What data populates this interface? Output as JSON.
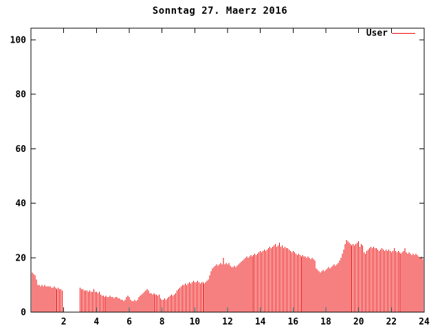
{
  "header": {
    "title": "Sonntag 27. Maerz 2016"
  },
  "legend": {
    "label": "User"
  },
  "colors": {
    "bar": "#ee0000",
    "legend_line": "#ee0000",
    "axis": "#000000",
    "background": "#ffffff",
    "text": "#000000"
  },
  "chart_data": {
    "type": "bar",
    "subtype": "impulses",
    "title": "Sonntag 27. Maerz 2016",
    "series_name": "User",
    "xlabel": "",
    "ylabel": "",
    "x_unit": "hour of day",
    "x_interval_minutes": 5,
    "xlim": [
      0,
      24
    ],
    "ylim": [
      0,
      104
    ],
    "xticks": [
      2,
      4,
      6,
      8,
      10,
      12,
      14,
      16,
      18,
      20,
      22,
      24
    ],
    "yticks": [
      0,
      20,
      40,
      60,
      80,
      100
    ],
    "grid": false,
    "legend_position": "top-right",
    "values": [
      14.5,
      14,
      13.5,
      12,
      10,
      10,
      9.5,
      10,
      9.5,
      10,
      9.5,
      9.5,
      9.5,
      9.5,
      9,
      9,
      9.5,
      9,
      8.5,
      9,
      8.5,
      8.5,
      8,
      0,
      0,
      0,
      0,
      0,
      0,
      0,
      0,
      0,
      0,
      0,
      0,
      9,
      8.5,
      8.5,
      8,
      8,
      8,
      7.5,
      8,
      7.5,
      7.5,
      8.5,
      7.5,
      7.5,
      7,
      7.5,
      6.5,
      6,
      6,
      5.5,
      6,
      5.5,
      5.5,
      6,
      5.5,
      5.5,
      5,
      5.5,
      5.5,
      5,
      5,
      4.5,
      4.5,
      4,
      4.5,
      5.5,
      6,
      5.5,
      4.5,
      4,
      4,
      4.5,
      4,
      4.5,
      5.5,
      6,
      6.5,
      7,
      7.5,
      8,
      8.5,
      8,
      7,
      7,
      6.5,
      7,
      6.5,
      6.5,
      6,
      6.5,
      5,
      4.5,
      4.5,
      5,
      4.5,
      5,
      5.5,
      6,
      6.5,
      6,
      6.5,
      7,
      8,
      8.5,
      9,
      9.5,
      10,
      10,
      10.5,
      10,
      10.5,
      11,
      10.5,
      11,
      11.5,
      11,
      11,
      11.5,
      11,
      10.5,
      11,
      11,
      10.5,
      11,
      11.5,
      12,
      13.5,
      15,
      16,
      16.5,
      17,
      17.5,
      17,
      17.5,
      18,
      17.5,
      20,
      17.5,
      18,
      17.5,
      18,
      17,
      16.5,
      16.5,
      17,
      16.5,
      17,
      17.5,
      18,
      18.5,
      19,
      19.5,
      20,
      20.5,
      20,
      20.5,
      21,
      20.5,
      21,
      21.5,
      21,
      21.5,
      22,
      22.5,
      22,
      22.5,
      23,
      22.5,
      23,
      23.5,
      24,
      23.5,
      24,
      24.5,
      25,
      24,
      24.5,
      25.5,
      24,
      24.5,
      23.5,
      24,
      23.5,
      23.5,
      23,
      22.5,
      22,
      22.5,
      22,
      21.5,
      21,
      21.5,
      21,
      20.5,
      21,
      20.5,
      20.5,
      20,
      20.5,
      20,
      19.5,
      20,
      19.5,
      19,
      16,
      15.5,
      15,
      14.5,
      15,
      15.5,
      15,
      15.5,
      16,
      16.5,
      16,
      16.5,
      17,
      17.5,
      17,
      17.5,
      18,
      19,
      20,
      21.5,
      23,
      25,
      26.5,
      26,
      25.5,
      25,
      24.5,
      25,
      24.5,
      25,
      25.5,
      26,
      24,
      25,
      24.5,
      22,
      21.5,
      22.5,
      23,
      23.5,
      24,
      23.5,
      24,
      23.5,
      23.5,
      23,
      22.5,
      23,
      23.5,
      23,
      22.5,
      23,
      22.5,
      23,
      22.5,
      22,
      22.5,
      23.5,
      22.5,
      22,
      22.5,
      22,
      21.5,
      22,
      22.5,
      23.5,
      22,
      21.5,
      22,
      21.5,
      21,
      21.5,
      21,
      21.5,
      21,
      20.5,
      20,
      20.5,
      19.5,
      19
    ]
  }
}
